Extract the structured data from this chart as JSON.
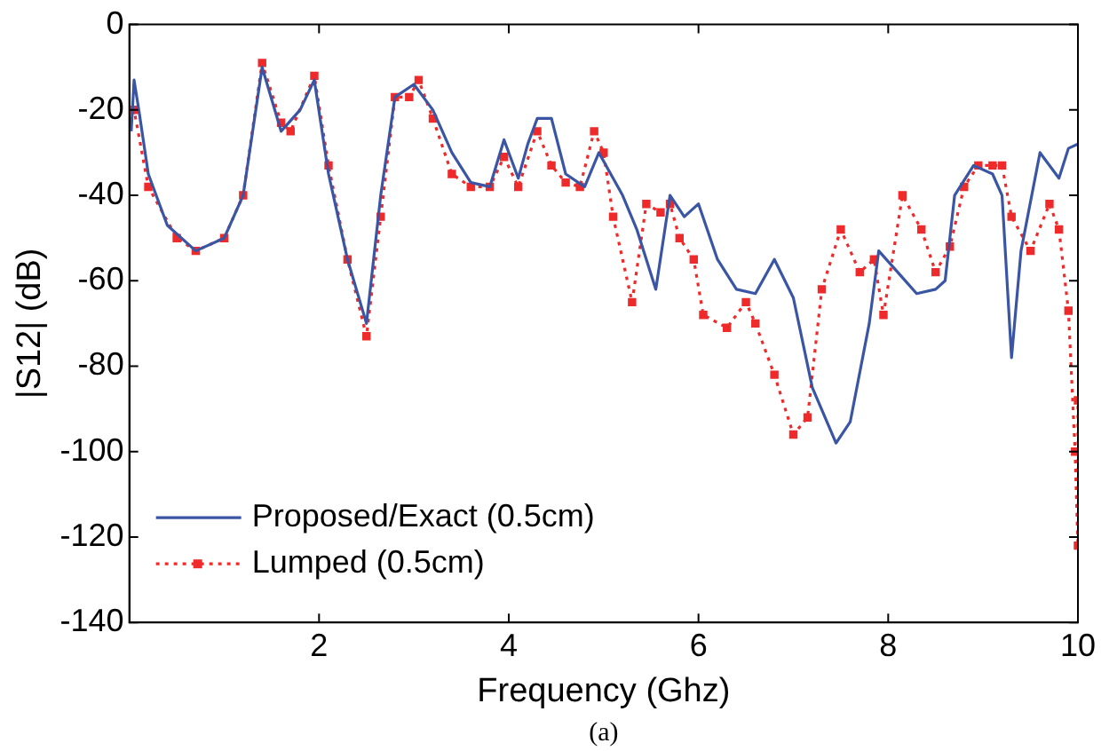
{
  "chart_data": {
    "type": "line",
    "xlabel": "Frequency (Ghz)",
    "ylabel": "|S12| (dB)",
    "xlim": [
      0,
      10
    ],
    "ylim": [
      -140,
      0
    ],
    "xticks": [
      2,
      4,
      6,
      8,
      10
    ],
    "yticks": [
      -140,
      -120,
      -100,
      -80,
      -60,
      -40,
      -20,
      0
    ],
    "grid": false,
    "legend": "bottom left",
    "annotations": [
      "(a)"
    ],
    "series": [
      {
        "name": "Proposed/Exact (0.5cm)",
        "color": "#3a55a4",
        "line_style": "solid",
        "marker": "none",
        "x": [
          0.02,
          0.05,
          0.1,
          0.2,
          0.4,
          0.7,
          1.0,
          1.2,
          1.4,
          1.6,
          1.8,
          1.95,
          2.1,
          2.3,
          2.5,
          2.65,
          2.8,
          3.0,
          3.2,
          3.4,
          3.6,
          3.8,
          3.95,
          4.1,
          4.2,
          4.3,
          4.45,
          4.6,
          4.8,
          4.95,
          5.05,
          5.2,
          5.35,
          5.55,
          5.7,
          5.85,
          6.0,
          6.2,
          6.4,
          6.6,
          6.8,
          7.0,
          7.2,
          7.45,
          7.6,
          7.8,
          7.9,
          8.1,
          8.3,
          8.5,
          8.6,
          8.7,
          8.9,
          9.1,
          9.2,
          9.3,
          9.4,
          9.6,
          9.8,
          9.9,
          10
        ],
        "values": [
          -25,
          -13,
          -20,
          -35,
          -47,
          -53,
          -50,
          -40,
          -10,
          -25,
          -20,
          -13,
          -35,
          -55,
          -70,
          -40,
          -17,
          -14,
          -20,
          -30,
          -37,
          -38,
          -27,
          -36,
          -28,
          -22,
          -22,
          -35,
          -38,
          -30,
          -34,
          -40,
          -48,
          -62,
          -40,
          -45,
          -42,
          -55,
          -62,
          -63,
          -55,
          -64,
          -85,
          -98,
          -93,
          -70,
          -53,
          -58,
          -63,
          -62,
          -60,
          -40,
          -33,
          -35,
          -40,
          -78,
          -53,
          -30,
          -36,
          -29,
          -28
        ]
      },
      {
        "name": "Lumped (0.5cm)",
        "color": "#ee2a2a",
        "line_style": "dotted",
        "marker": "square",
        "x": [
          0.02,
          0.05,
          0.2,
          0.5,
          0.7,
          1.0,
          1.2,
          1.4,
          1.6,
          1.7,
          1.95,
          2.1,
          2.3,
          2.5,
          2.65,
          2.8,
          2.95,
          3.05,
          3.2,
          3.4,
          3.6,
          3.8,
          3.95,
          4.1,
          4.3,
          4.45,
          4.6,
          4.75,
          4.9,
          5.0,
          5.1,
          5.3,
          5.45,
          5.6,
          5.7,
          5.8,
          5.95,
          6.05,
          6.3,
          6.5,
          6.6,
          6.8,
          7.0,
          7.15,
          7.3,
          7.5,
          7.7,
          7.85,
          7.95,
          8.15,
          8.35,
          8.5,
          8.65,
          8.8,
          8.95,
          9.1,
          9.2,
          9.3,
          9.5,
          9.7,
          9.8,
          9.9,
          9.97,
          10,
          10
        ],
        "values": [
          -20,
          -20,
          -38,
          -50,
          -53,
          -50,
          -40,
          -9,
          -23,
          -25,
          -12,
          -33,
          -55,
          -73,
          -45,
          -17,
          -17,
          -13,
          -22,
          -35,
          -38,
          -38,
          -31,
          -38,
          -25,
          -33,
          -37,
          -38,
          -25,
          -30,
          -45,
          -65,
          -42,
          -44,
          -42,
          -50,
          -55,
          -68,
          -71,
          -65,
          -70,
          -82,
          -96,
          -92,
          -62,
          -48,
          -58,
          -55,
          -68,
          -40,
          -48,
          -58,
          -52,
          -38,
          -33,
          -33,
          -33,
          -45,
          -53,
          -42,
          -48,
          -67,
          -100,
          -122,
          -88
        ]
      }
    ]
  }
}
